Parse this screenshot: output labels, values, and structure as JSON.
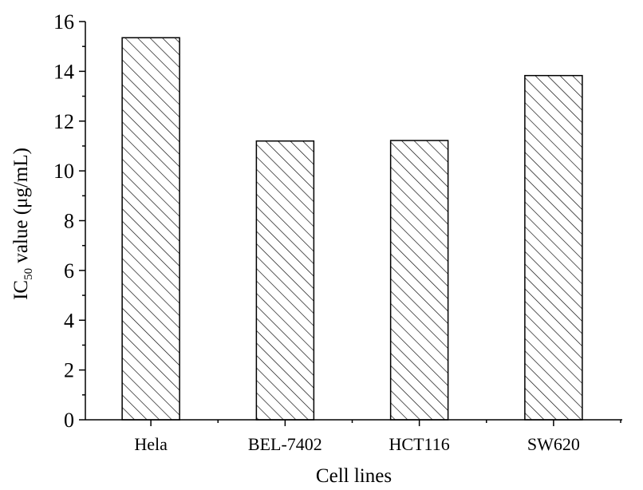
{
  "chart_data": {
    "type": "bar",
    "categories": [
      "Hela",
      "BEL-7402",
      "HCT116",
      "SW620"
    ],
    "values": [
      15.35,
      11.2,
      11.22,
      13.83
    ],
    "xlabel": "Cell lines",
    "ylabel_prefix": "IC",
    "ylabel_subscript": "50",
    "ylabel_suffix": " value (μg/mL)",
    "ylim": [
      0,
      16
    ],
    "yticks": [
      0,
      2,
      4,
      6,
      8,
      10,
      12,
      14,
      16
    ],
    "grid": false,
    "bar_fill": "diagonal-hatch",
    "color": "#000000"
  }
}
